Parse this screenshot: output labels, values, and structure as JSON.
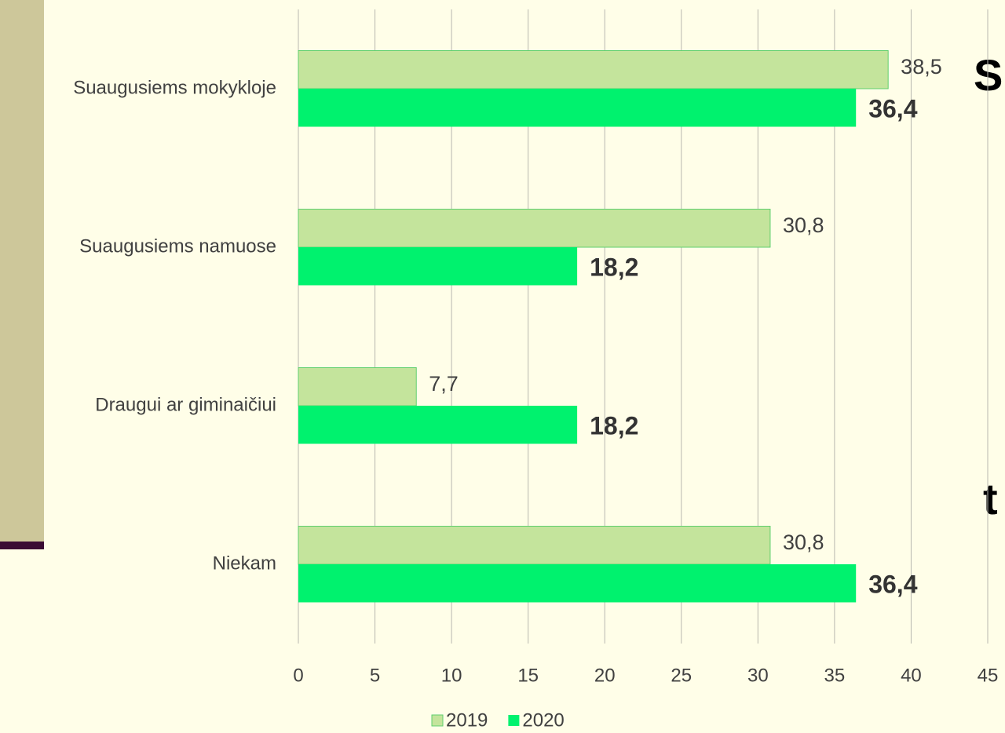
{
  "chart_data": {
    "type": "barh",
    "categories": [
      "Suaugusiems mokykloje",
      "Suaugusiems namuose",
      "Draugui ar giminaičiui",
      "Niekam"
    ],
    "series": [
      {
        "name": "2019",
        "color": "#c4e49c",
        "values": [
          38.5,
          30.8,
          7.7,
          30.8
        ],
        "value_labels": [
          "38,5",
          "30,8",
          "7,7",
          "30,8"
        ]
      },
      {
        "name": "2020",
        "color": "#00f26e",
        "values": [
          36.4,
          18.2,
          18.2,
          36.4
        ],
        "value_labels": [
          "36,4",
          "18,2",
          "18,2",
          "36,4"
        ]
      }
    ],
    "xlim": [
      0,
      45
    ],
    "xticks": [
      0,
      5,
      10,
      15,
      20,
      25,
      30,
      35,
      40,
      45
    ],
    "grid": true,
    "legend": "bottom"
  },
  "background_text": [
    "S",
    "t"
  ]
}
